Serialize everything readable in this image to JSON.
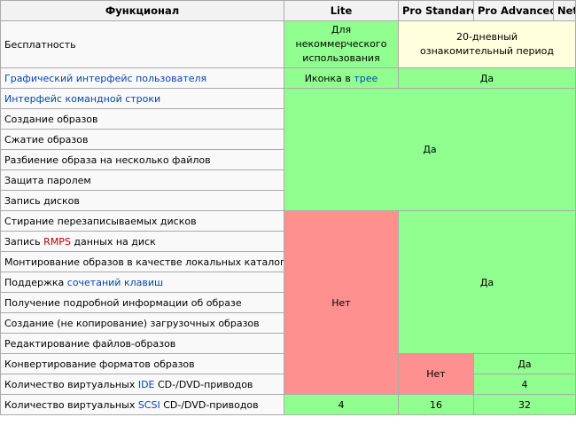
{
  "header": {
    "feature": "Функционал",
    "lite": "Lite",
    "pro_standard": "Pro Standard",
    "pro_advanced": "Pro Advanced",
    "net": "Net"
  },
  "rows": {
    "free": "Бесплатность",
    "free_lite": "Для некоммерческого использования",
    "free_trial": "20-дневный ознакомительный период",
    "gui": "Графический интерфейс пользователя",
    "gui_lite_prefix": "Иконка в ",
    "gui_lite_link": "трее",
    "gui_rest": "Да",
    "cli": "Интерфейс командной строки",
    "create_images": "Создание образов",
    "compress_images": "Сжатие образов",
    "split_image": "Разбиение образа на несколько файлов",
    "password": "Защита паролем",
    "burn": "Запись дисков",
    "block1_value": "Да",
    "erase_rw": "Стирание перезаписываемых дисков",
    "rmps_prefix": "Запись ",
    "rmps_link": "RMPS",
    "rmps_suffix": " данных на диск",
    "mount_dirs": "Монтирование образов в качестве локальных каталогов",
    "hotkeys_prefix": "Поддержка ",
    "hotkeys_link": "сочетаний клавиш",
    "image_info": "Получение подробной информации об образе",
    "boot_images": "Создание (не копирование) загрузочных образов",
    "edit_files": "Редактирование файлов-образов",
    "block2_lite": "Нет",
    "block2_rest": "Да",
    "convert": "Конвертирование форматов образов",
    "ide_prefix": "Количество виртуальных ",
    "ide_link": "IDE",
    "ide_suffix": " CD-/DVD-приводов",
    "no_std": "Нет",
    "convert_adv": "Да",
    "ide_adv": "4",
    "scsi_prefix": "Количество виртуальных ",
    "scsi_link": "SCSI",
    "scsi_suffix": " CD-/DVD-приводов",
    "scsi_lite": "4",
    "scsi_std": "16",
    "scsi_adv": "32"
  },
  "colors": {
    "yes": "#90ff90",
    "no": "#ff9090",
    "trial": "#ffffdd",
    "header": "#f2f2f2",
    "link": "#0645ad",
    "link_red": "#ba0000"
  }
}
